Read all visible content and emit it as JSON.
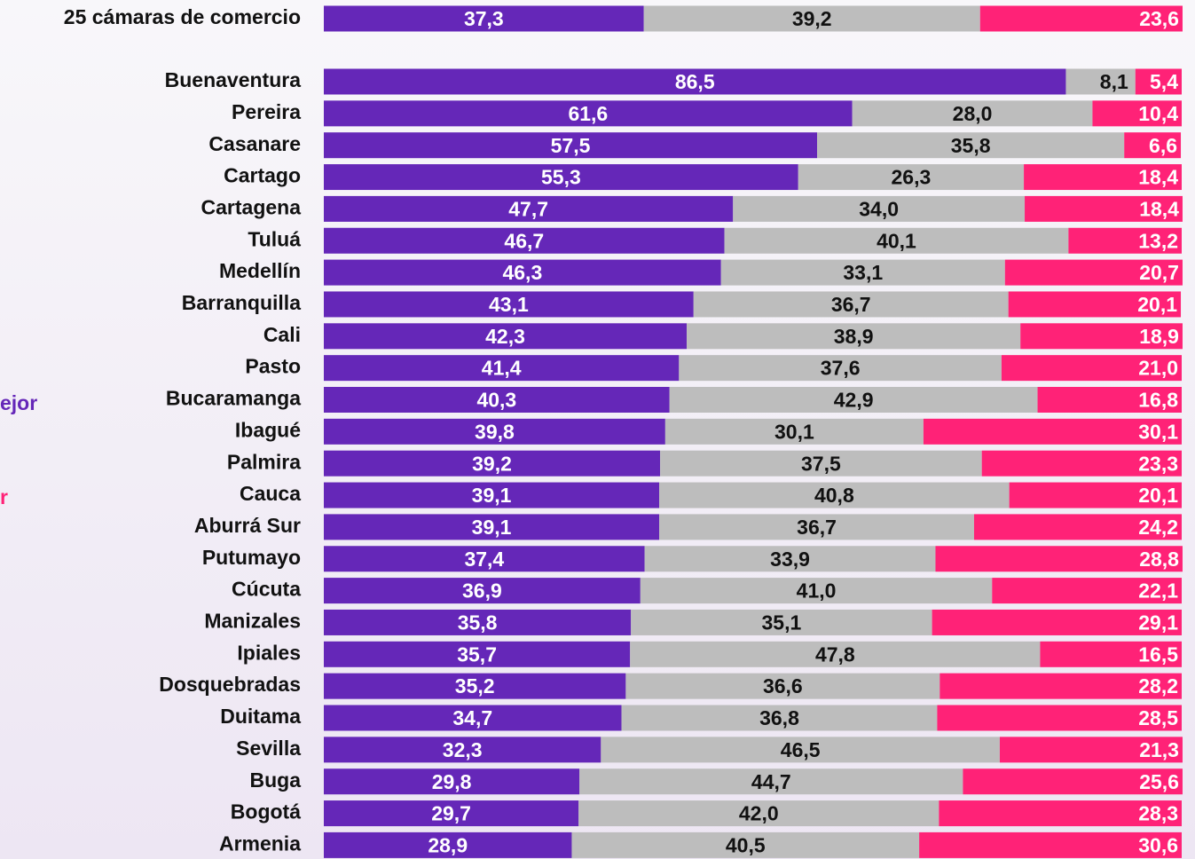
{
  "chart_data": {
    "type": "stacked_barh",
    "categories": [
      "25 cámaras de comercio",
      "Buenaventura",
      "Pereira",
      "Casanare",
      "Cartago",
      "Cartagena",
      "Tuluá",
      "Medellín",
      "Barranquilla",
      "Cali",
      "Pasto",
      "Bucaramanga",
      "Ibagué",
      "Palmira",
      "Cauca",
      "Aburrá Sur",
      "Putumayo",
      "Cúcuta",
      "Manizales",
      "Ipiales",
      "Dosquebradas",
      "Duitama",
      "Sevilla",
      "Buga",
      "Bogotá",
      "Armenia"
    ],
    "xlim": [
      0,
      100
    ],
    "series": [
      {
        "name": "ejor",
        "color": "#6527b8",
        "values": [
          37.3,
          86.5,
          61.6,
          57.5,
          55.3,
          47.7,
          46.7,
          46.3,
          43.1,
          42.3,
          41.4,
          40.3,
          39.8,
          39.2,
          39.1,
          39.1,
          37.4,
          36.9,
          35.8,
          35.7,
          35.2,
          34.7,
          32.3,
          29.8,
          29.7,
          28.9
        ],
        "value_labels": [
          "37,3",
          "86,5",
          "61,6",
          "57,5",
          "55,3",
          "47,7",
          "46,7",
          "46,3",
          "43,1",
          "42,3",
          "41,4",
          "40,3",
          "39,8",
          "39,2",
          "39,1",
          "39,1",
          "37,4",
          "36,9",
          "35,8",
          "35,7",
          "35,2",
          "34,7",
          "32,3",
          "29,8",
          "29,7",
          "28,9"
        ]
      },
      {
        "color": "#bdbdbd",
        "values": [
          39.2,
          8.1,
          28.0,
          35.8,
          26.3,
          34.0,
          40.1,
          33.1,
          36.7,
          38.9,
          37.6,
          42.9,
          30.1,
          37.5,
          40.8,
          36.7,
          33.9,
          41.0,
          35.1,
          47.8,
          36.6,
          36.8,
          46.5,
          44.7,
          42.0,
          40.5
        ],
        "value_labels": [
          "39,2",
          "8,1",
          "28,0",
          "35,8",
          "26,3",
          "34,0",
          "40,1",
          "33,1",
          "36,7",
          "38,9",
          "37,6",
          "42,9",
          "30,1",
          "37,5",
          "40,8",
          "36,7",
          "33,9",
          "41,0",
          "35,1",
          "47,8",
          "36,6",
          "36,8",
          "46,5",
          "44,7",
          "42,0",
          "40,5"
        ]
      },
      {
        "name": "r",
        "color": "#ff2277",
        "values": [
          23.6,
          5.4,
          10.4,
          6.6,
          18.4,
          18.4,
          13.2,
          20.7,
          20.1,
          18.9,
          21.0,
          16.8,
          30.1,
          23.3,
          20.1,
          24.2,
          28.8,
          22.1,
          29.1,
          16.5,
          28.2,
          28.5,
          21.3,
          25.6,
          28.3,
          30.6
        ],
        "value_labels": [
          "23,6",
          "5,4",
          "10,4",
          "6,6",
          "18,4",
          "18,4",
          "13,2",
          "20,7",
          "20,1",
          "18,9",
          "21,0",
          "16,8",
          "30,1",
          "23,3",
          "20,1",
          "24,2",
          "28,8",
          "22,1",
          "29,1",
          "16,5",
          "28,2",
          "28,5",
          "21,3",
          "25,6",
          "28,3",
          "30,6"
        ]
      }
    ]
  }
}
